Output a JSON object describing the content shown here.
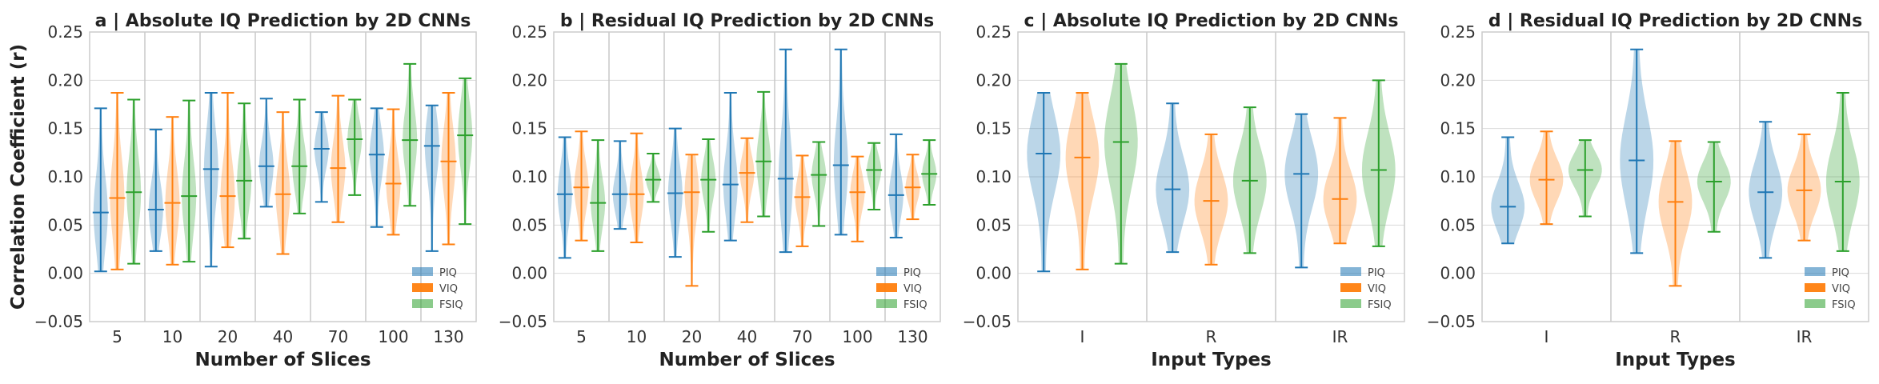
{
  "colors": {
    "PIQ": "#1f77b4",
    "VIQ": "#ff7f0e",
    "FSIQ": "#2ca02c"
  },
  "legend_labels": [
    "PIQ",
    "VIQ",
    "FSIQ"
  ],
  "chart_data": [
    {
      "type": "violin",
      "panel": "a",
      "title": "a | Absolute IQ Prediction by 2D CNNs",
      "xlabel": "Number of Slices",
      "ylabel": "Correlation Coefficient (r)",
      "ylim": [
        -0.05,
        0.25
      ],
      "yticks": [
        "−0.05",
        "0.00",
        "0.05",
        "0.10",
        "0.15",
        "0.20",
        "0.25"
      ],
      "ytick_values": [
        -0.05,
        0,
        0.05,
        0.1,
        0.15,
        0.2,
        0.25
      ],
      "categories": [
        "5",
        "10",
        "20",
        "40",
        "70",
        "100",
        "130"
      ],
      "grid": true,
      "legend_position": "lower-right",
      "series": [
        {
          "name": "PIQ",
          "min": [
            0.002,
            0.023,
            0.007,
            0.069,
            0.074,
            0.048,
            0.023
          ],
          "median": [
            0.063,
            0.066,
            0.108,
            0.111,
            0.129,
            0.123,
            0.132
          ],
          "max": [
            0.171,
            0.149,
            0.187,
            0.181,
            0.167,
            0.171,
            0.174
          ]
        },
        {
          "name": "VIQ",
          "min": [
            0.004,
            0.009,
            0.027,
            0.02,
            0.053,
            0.04,
            0.03
          ],
          "median": [
            0.078,
            0.073,
            0.08,
            0.082,
            0.109,
            0.093,
            0.116
          ],
          "max": [
            0.187,
            0.162,
            0.187,
            0.167,
            0.184,
            0.17,
            0.187
          ]
        },
        {
          "name": "FSIQ",
          "min": [
            0.01,
            0.012,
            0.036,
            0.062,
            0.081,
            0.07,
            0.051
          ],
          "median": [
            0.084,
            0.08,
            0.096,
            0.111,
            0.139,
            0.138,
            0.143
          ],
          "max": [
            0.18,
            0.179,
            0.176,
            0.18,
            0.18,
            0.217,
            0.202
          ]
        }
      ]
    },
    {
      "type": "violin",
      "panel": "b",
      "title": "b | Residual IQ Prediction by 2D CNNs",
      "xlabel": "Number of Slices",
      "ylabel": "",
      "ylim": [
        -0.05,
        0.25
      ],
      "yticks": [
        "−0.05",
        "0.00",
        "0.05",
        "0.10",
        "0.15",
        "0.20",
        "0.25"
      ],
      "ytick_values": [
        -0.05,
        0,
        0.05,
        0.1,
        0.15,
        0.2,
        0.25
      ],
      "categories": [
        "5",
        "10",
        "20",
        "40",
        "70",
        "100",
        "130"
      ],
      "grid": true,
      "legend_position": "lower-right",
      "series": [
        {
          "name": "PIQ",
          "min": [
            0.016,
            0.046,
            0.017,
            0.034,
            0.022,
            0.04,
            0.037
          ],
          "median": [
            0.082,
            0.082,
            0.083,
            0.092,
            0.098,
            0.112,
            0.081
          ],
          "max": [
            0.141,
            0.137,
            0.15,
            0.187,
            0.232,
            0.232,
            0.144
          ]
        },
        {
          "name": "VIQ",
          "min": [
            0.034,
            0.032,
            -0.013,
            0.053,
            0.028,
            0.033,
            0.056
          ],
          "median": [
            0.089,
            0.082,
            0.084,
            0.104,
            0.079,
            0.084,
            0.089
          ],
          "max": [
            0.147,
            0.145,
            0.123,
            0.14,
            0.122,
            0.121,
            0.123
          ]
        },
        {
          "name": "FSIQ",
          "min": [
            0.023,
            0.074,
            0.043,
            0.059,
            0.049,
            0.066,
            0.071
          ],
          "median": [
            0.073,
            0.097,
            0.097,
            0.116,
            0.102,
            0.107,
            0.103
          ],
          "max": [
            0.138,
            0.124,
            0.139,
            0.188,
            0.136,
            0.135,
            0.138
          ]
        }
      ]
    },
    {
      "type": "violin",
      "panel": "c",
      "title": "c | Absolute IQ Prediction by 2D CNNs",
      "xlabel": "Input Types",
      "ylabel": "",
      "ylim": [
        -0.05,
        0.25
      ],
      "yticks": [
        "−0.05",
        "0.00",
        "0.05",
        "0.10",
        "0.15",
        "0.20",
        "0.25"
      ],
      "ytick_values": [
        -0.05,
        0,
        0.05,
        0.1,
        0.15,
        0.2,
        0.25
      ],
      "categories": [
        "I",
        "R",
        "IR"
      ],
      "grid": true,
      "legend_position": "lower-right",
      "series": [
        {
          "name": "PIQ",
          "min": [
            0.002,
            0.022,
            0.006
          ],
          "median": [
            0.124,
            0.087,
            0.103
          ],
          "max": [
            0.187,
            0.176,
            0.165
          ]
        },
        {
          "name": "VIQ",
          "min": [
            0.004,
            0.009,
            0.031
          ],
          "median": [
            0.12,
            0.075,
            0.077
          ],
          "max": [
            0.187,
            0.144,
            0.161
          ]
        },
        {
          "name": "FSIQ",
          "min": [
            0.01,
            0.021,
            0.028
          ],
          "median": [
            0.136,
            0.096,
            0.107
          ],
          "max": [
            0.217,
            0.172,
            0.2
          ]
        }
      ]
    },
    {
      "type": "violin",
      "panel": "d",
      "title": "d | Residual IQ Prediction by 2D CNNs",
      "xlabel": "Input Types",
      "ylabel": "",
      "ylim": [
        -0.05,
        0.25
      ],
      "yticks": [
        "−0.05",
        "0.00",
        "0.05",
        "0.10",
        "0.15",
        "0.20",
        "0.25"
      ],
      "ytick_values": [
        -0.05,
        0,
        0.05,
        0.1,
        0.15,
        0.2,
        0.25
      ],
      "categories": [
        "I",
        "R",
        "IR"
      ],
      "grid": true,
      "legend_position": "lower-right",
      "series": [
        {
          "name": "PIQ",
          "min": [
            0.031,
            0.021,
            0.016
          ],
          "median": [
            0.069,
            0.117,
            0.084
          ],
          "max": [
            0.141,
            0.232,
            0.157
          ]
        },
        {
          "name": "VIQ",
          "min": [
            0.051,
            -0.013,
            0.034
          ],
          "median": [
            0.097,
            0.074,
            0.086
          ],
          "max": [
            0.147,
            0.137,
            0.144
          ]
        },
        {
          "name": "FSIQ",
          "min": [
            0.059,
            0.043,
            0.023
          ],
          "median": [
            0.107,
            0.095,
            0.095
          ],
          "max": [
            0.138,
            0.136,
            0.187
          ]
        }
      ]
    }
  ]
}
